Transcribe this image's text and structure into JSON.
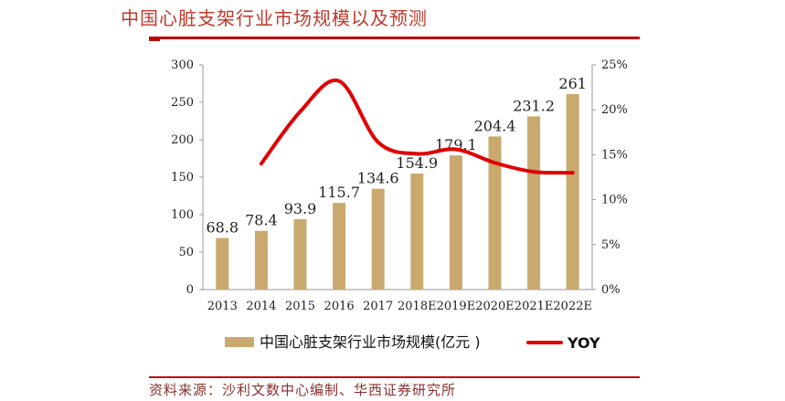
{
  "page": {
    "title": "中国心脏支架行业市场规模以及预测",
    "source": "资料来源：沙利文数中心编制、华西证券研究所"
  },
  "colors": {
    "bar": "#c9a96e",
    "line": "#e00000",
    "title": "#c0392b",
    "rule": "#c00000"
  },
  "chart_data": {
    "type": "bar",
    "title": "中国心脏支架行业市场规模以及预测",
    "categories": [
      "2013",
      "2014",
      "2015",
      "2016",
      "2017",
      "2018E",
      "2019E",
      "2020E",
      "2021E",
      "2022E"
    ],
    "series": [
      {
        "name": "中国心脏支架行业市场规模(亿元 )",
        "type": "bar",
        "values": [
          68.8,
          78.4,
          93.9,
          115.7,
          134.6,
          154.9,
          179.1,
          204.4,
          231.2,
          261
        ],
        "labels": [
          "68.8",
          "78.4",
          "93.9",
          "115.7",
          "134.6",
          "154.9",
          "179.1",
          "204.4",
          "231.2",
          "261"
        ]
      },
      {
        "name": "YOY",
        "type": "line",
        "axis": "right",
        "values": [
          null,
          14.0,
          19.8,
          23.2,
          16.4,
          15.1,
          15.6,
          14.1,
          13.1,
          13.0
        ]
      }
    ],
    "left_axis": {
      "ylim": [
        0,
        300
      ],
      "ticks": [
        "0",
        "50",
        "100",
        "150",
        "200",
        "250",
        "300"
      ]
    },
    "right_axis": {
      "ylim": [
        0,
        25
      ],
      "ticks": [
        "0%",
        "5%",
        "10%",
        "15%",
        "20%",
        "25%"
      ]
    },
    "legend": {
      "position": "bottom",
      "bar_label": "中国心脏支架行业市场规模(亿元 )",
      "line_label": "YOY"
    },
    "grid": false
  }
}
